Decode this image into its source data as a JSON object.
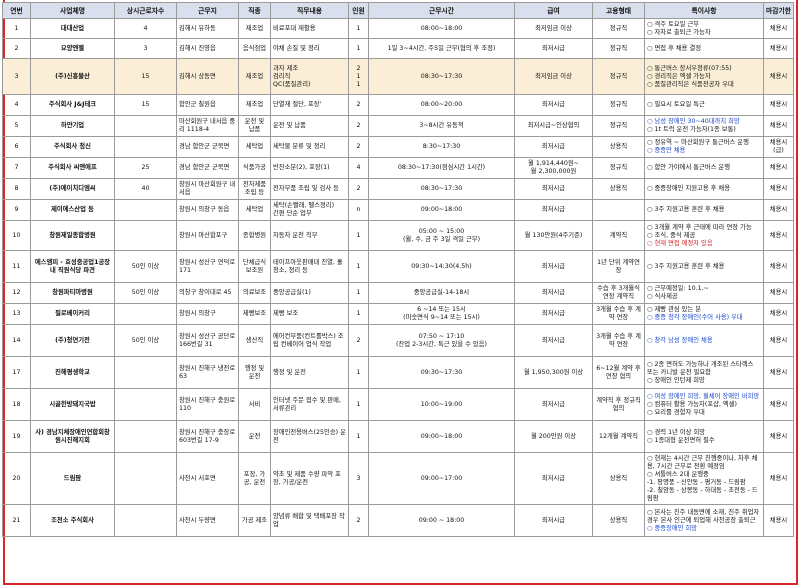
{
  "headers": [
    "연번",
    "사업체명",
    "상시근로자수",
    "근무지",
    "직종",
    "직무내용",
    "인원",
    "근무시간",
    "급여",
    "고용형태",
    "특이사항",
    "마감기한"
  ],
  "rows": [
    {
      "no": "1",
      "company": "대대산업",
      "workers": "4",
      "location": "김해시 유하동",
      "job": "제조업",
      "duty": "비료포대 재활용",
      "count": "1",
      "hours": "08:00~18:00",
      "pay": "최저임금 이상",
      "type": "정규직",
      "notes": [
        {
          "t": "○ 격주 토요일 근무",
          "c": ""
        },
        {
          "t": "○ 자차로 출퇴근 가능자",
          "c": ""
        }
      ],
      "deadline": "채용시",
      "h": 20
    },
    {
      "no": "2",
      "company": "요양엔젤",
      "workers": "3",
      "location": "김해시 진영읍",
      "job": "음식점업",
      "duty": "야채 손질 및 정리",
      "count": "1",
      "hours": "1일 3~4시간, 주5일 근무(협의 후 조정)",
      "pay": "최저시급",
      "type": "정규직",
      "notes": [
        {
          "t": "○ 면접 후 채용 결정",
          "c": ""
        }
      ],
      "deadline": "채용시",
      "h": 20
    },
    {
      "no": "3",
      "company": "(주)신흥물산",
      "workers": "15",
      "location": "김해시 상동면",
      "job": "제조업",
      "duty": "과자 제조\n검리직\nQC(품질관리)",
      "count": "2\n1\n1",
      "hours": "08:30~17:30",
      "pay": "최저임금 이상",
      "type": "정규직",
      "notes": [
        {
          "t": "○ 통근버스 장서우정류(07:55)",
          "c": ""
        },
        {
          "t": "○ 경리직은 엑셀 가능자",
          "c": ""
        },
        {
          "t": "○ 품질관리직은 식품전공자 우대",
          "c": ""
        }
      ],
      "deadline": "채용시",
      "h": 36,
      "hl": true
    },
    {
      "no": "4",
      "company": "주식회사 J&J테크",
      "workers": "15",
      "location": "함안군 칠원읍",
      "job": "제조업",
      "duty": "단열재 절단, 포장'",
      "count": "2",
      "hours": "08:00~20:00",
      "pay": "최저시급",
      "type": "정규직",
      "notes": [
        {
          "t": "○ 필요시 토요일 특근",
          "c": ""
        }
      ],
      "deadline": "채용시",
      "h": 21
    },
    {
      "no": "5",
      "company": "하얀기업",
      "workers": "",
      "location": "마산회원구 내서읍 중리 1118-4",
      "job": "운전 및 납품",
      "duty": "운전 및 납품",
      "count": "2",
      "hours": "3~8시간 유동적",
      "pay": "최저시급~인상협의",
      "type": "정규직",
      "notes": [
        {
          "t": "○ 남성 장애인 30~40대까지 희망",
          "c": "blue"
        },
        {
          "t": "○ 1t 트럭 운전 가능자(1종 보통)",
          "c": ""
        }
      ],
      "deadline": "채용시",
      "h": 21
    },
    {
      "no": "6",
      "company": "주식회사 청신",
      "workers": "",
      "location": "경남 함안군 군북면",
      "job": "세탁업",
      "duty": "세탁물 분류 및 정리",
      "count": "2",
      "hours": "8:30~17:30",
      "pay": "최저시급",
      "type": "상용직",
      "notes": [
        {
          "t": "○ 정유역 ~ 마산회원구 통근버스 운행",
          "c": ""
        },
        {
          "t": "○ 중증만 채용",
          "c": "blue"
        }
      ],
      "deadline": "채용시(급)",
      "h": 21
    },
    {
      "no": "7",
      "company": "주식회사 씨앤에프",
      "workers": "25",
      "location": "경남 함안군 군북면",
      "job": "식품가공",
      "duty": "반찬소분(2), 포장(1)",
      "count": "4",
      "hours": "08:30~17:30(점심시간 1시간)",
      "pay": "월 1,914,440원~\n월 2,300,000원",
      "type": "정규직",
      "notes": [
        {
          "t": "○ 함안 가야에서 통근버스 운행",
          "c": ""
        }
      ],
      "deadline": "채용시",
      "h": 21
    },
    {
      "no": "8",
      "company": "(주)에이치디엠씨",
      "workers": "40",
      "location": "창원시 마산회원구 내서읍",
      "job": "전자제품 조립 등",
      "duty": "전자부품 조립 및 검사 등",
      "count": "2",
      "hours": "08:30~17:30",
      "pay": "최저시급",
      "type": "상용직",
      "notes": [
        {
          "t": "○ 중증장애인 지원고용 후 채용",
          "c": ""
        }
      ],
      "deadline": "채용시",
      "h": 21
    },
    {
      "no": "9",
      "company": "제이에스산업 등",
      "workers": "",
      "location": "창원시 의창구 동읍",
      "job": "세탁업",
      "duty": "세탁(손빨래, 펠스정리)\n간편 단순 업무",
      "count": "n",
      "hours": "09:00~18:00",
      "pay": "최저시급",
      "type": "",
      "notes": [
        {
          "t": "○ 3주 지원고용 훈련 후 채용",
          "c": ""
        }
      ],
      "deadline": "채용시",
      "h": 21
    },
    {
      "no": "10",
      "company": "창원제일종합병원",
      "workers": "",
      "location": "창원시 마산합포구",
      "job": "종합병원",
      "duty": "자동차 운전 직무",
      "count": "1",
      "hours": "05:00 ~ 15:00\n(월, 수, 금 주 3일 격일 근무)",
      "pay": "월 130만원(4주기준)",
      "type": "계약직",
      "notes": [
        {
          "t": "○ 3개월 계약 후 근태에 따라 연장 가능",
          "c": ""
        },
        {
          "t": "○ 조식, 중식 제공",
          "c": ""
        },
        {
          "t": "○ 현재 면접 예정자 있음",
          "c": "red"
        }
      ],
      "deadline": "채용시",
      "h": 30
    },
    {
      "no": "11",
      "company": "에스엠피 - 효성중공업1공장 내 직원식당 파견",
      "workers": "50인 이상",
      "location": "창원시 성산구 연덕로 171",
      "job": "단체급식 보조원",
      "duty": "테이프아웃판매대 진열, 홀 청소, 정리 등",
      "count": "1",
      "hours": "09:30~14:30(4.5h)",
      "pay": "최저시급",
      "type": "1년 단위 계약연장",
      "notes": [
        {
          "t": "○ 3주 지원고용 훈련 후 채용",
          "c": ""
        }
      ],
      "deadline": "채용시",
      "h": 32
    },
    {
      "no": "12",
      "company": "창원파티마병원",
      "workers": "50인 이상",
      "location": "의창구 창이대로 45",
      "job": "의료보조",
      "duty": "중앙공급실(1)",
      "count": "1",
      "hours": "중앙공급실-14-18시",
      "pay": "최저시급",
      "type": "수습 후 3개월식 연장 계약직",
      "notes": [
        {
          "t": "○ 근무예정일: 10.1.~",
          "c": ""
        },
        {
          "t": "○ 식사제공",
          "c": ""
        }
      ],
      "deadline": "채용시",
      "h": 21
    },
    {
      "no": "13",
      "company": "필로베이커리",
      "workers": "",
      "location": "창원시 의창구",
      "job": "제빵보조",
      "duty": "제빵 보조",
      "count": "1",
      "hours": "6 ~14 또는 15시\n(미숫면식 9~14 또는 15시)",
      "pay": "최저시급",
      "type": "3개월 수습 후 계약 연장",
      "notes": [
        {
          "t": "○ 제빵 관심 있는 분",
          "c": ""
        },
        {
          "t": "○ 중증 청각 장애인(수어 사용) 우대",
          "c": "blue"
        }
      ],
      "deadline": "채용시",
      "h": 21
    },
    {
      "no": "14",
      "company": "(주)청연기전",
      "workers": "50인 이상",
      "location": "창원시 성산구 공단로 166번길 31",
      "job": "생산직",
      "duty": "에어컨부품(컨트롤박스) 조립 컨베이어 업식 작업",
      "count": "2",
      "hours": "07:50 ~ 17:10\n(잔업 2-3시간, 특근 있을 수 있음)",
      "pay": "최저시급",
      "type": "3개월 수습 후 계약 연장",
      "notes": [
        {
          "t": "○ 창각 남성 장애인 채용",
          "c": "blue"
        }
      ],
      "deadline": "채용시",
      "h": 32
    },
    {
      "no": "17",
      "company": "진해평생학교",
      "workers": "",
      "location": "창원시 진해구 냉전로 63",
      "job": "행정 및 운전",
      "duty": "행정 및 운전",
      "count": "1",
      "hours": "09:30~17:30",
      "pay": "월 1,950,300원 이상",
      "type": "6~12월 계약 후 연장 협의",
      "notes": [
        {
          "t": "○ 2종 면허도 가능하나 개조된 스타렉스 또는 카니발 운전 필요함",
          "c": ""
        },
        {
          "t": "○ 장애인 인턴제 희망",
          "c": ""
        }
      ],
      "deadline": "채용시",
      "h": 32
    },
    {
      "no": "18",
      "company": "시골한방돼지국밥",
      "workers": "",
      "location": "창원시 진해구 충원로 110",
      "job": "서비",
      "duty": "인터넷 주문 접수 및 판매, 서류관리",
      "count": "1",
      "hours": "10:00~19:00",
      "pay": "최저시급",
      "type": "계약직 후 정규직 협의",
      "notes": [
        {
          "t": "○ 여성 장애인 희망, 휠체어 장애인 비희망",
          "c": "blue"
        },
        {
          "t": "○ 컴퓨터 활용 가능자(포샵, 엑셀)",
          "c": ""
        },
        {
          "t": "○ 요리를 경험자 우대",
          "c": ""
        }
      ],
      "deadline": "채용시",
      "h": 32
    },
    {
      "no": "19",
      "company": "사) 경남지체장애인연합회창원시진해지회",
      "workers": "",
      "location": "창원시 진해구 충장로 603번길 17-9",
      "job": "운전",
      "duty": "장애인전용버스(25인승) 운전",
      "count": "1",
      "hours": "09:00~18:00",
      "pay": "월 200만원 이상",
      "type": "12개월 계약직",
      "notes": [
        {
          "t": "○ 경력 1년 이상 희망",
          "c": ""
        },
        {
          "t": "○ 1종대형 운전면허 필수",
          "c": ""
        }
      ],
      "deadline": "채용시",
      "h": 32
    },
    {
      "no": "20",
      "company": "드림팜",
      "workers": "",
      "location": "사천시 서포면",
      "job": "포장, 가공, 운전",
      "duty": "약초 및 제품 수량 파악 포장, 가공/운전",
      "count": "3",
      "hours": "09:00~17:00",
      "pay": "최저시급",
      "type": "상용직",
      "notes": [
        {
          "t": "○ 현재는 4시간 근무 진행중이나, 차후 채용, 7시간 근무로 전환 예정임",
          "c": ""
        },
        {
          "t": "○ 셔틀버스 2대 운행중",
          "c": ""
        },
        {
          "t": "-1. 팡명풍 - 신안동 - 평거동 - 드림팜",
          "c": ""
        },
        {
          "t": "-2. 칠암동 - 상봉동 - 하대동 - 초전동 - 드림팜",
          "c": ""
        }
      ],
      "deadline": "채용시",
      "h": 52
    },
    {
      "no": "21",
      "company": "조천소 주식회사",
      "workers": "",
      "location": "사천시 두량면",
      "job": "가공 제조",
      "duty": "양념류 배합 및 택배포장 작업",
      "count": "2",
      "hours": "09:00 ~ 18:00",
      "pay": "최저시급",
      "type": "상용직",
      "notes": [
        {
          "t": "○ 본사는 진주 내동면에 소재, 진주 취업자 경우 본사 인근에 퇴업해 사천공장 출퇴근",
          "c": ""
        },
        {
          "t": "○ 중증장애인 희망",
          "c": "blue"
        }
      ],
      "deadline": "채용시",
      "h": 32
    }
  ]
}
